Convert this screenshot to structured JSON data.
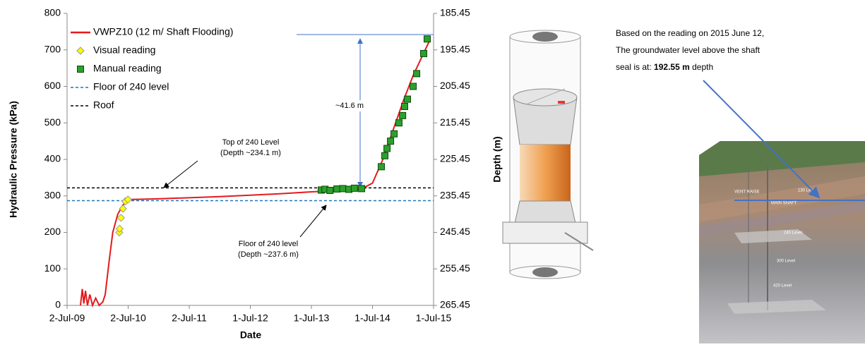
{
  "chart_data": {
    "type": "line",
    "x_label": "Date",
    "y_label": "Hydraulic Pressure (kPa)",
    "y2_label": "Depth (m)",
    "xlim": [
      "2009-07-02",
      "2015-07-01"
    ],
    "xticks": [
      {
        "value": "2009-07-02",
        "label": "2-Jul-09"
      },
      {
        "value": "2010-07-02",
        "label": "2-Jul-10"
      },
      {
        "value": "2011-07-02",
        "label": "2-Jul-11"
      },
      {
        "value": "2012-07-01",
        "label": "1-Jul-12"
      },
      {
        "value": "2013-07-01",
        "label": "1-Jul-13"
      },
      {
        "value": "2014-07-01",
        "label": "1-Jul-14"
      },
      {
        "value": "2015-07-01",
        "label": "1-Jul-15"
      }
    ],
    "ylim": [
      0,
      800
    ],
    "yticks": [
      0,
      100,
      200,
      300,
      400,
      500,
      600,
      700,
      800
    ],
    "y2lim": [
      265.45,
      185.45
    ],
    "y2ticks": [
      265.45,
      255.45,
      245.45,
      235.45,
      225.45,
      215.45,
      205.45,
      195.45,
      185.45
    ],
    "grid": false,
    "legend": "top-left",
    "series": [
      {
        "name": "VWPZ10 (12 m/ Shaft Flooding)",
        "color": "#e41a1c",
        "kind": "line",
        "x": [
          "2009-09-20",
          "2009-10-01",
          "2009-10-10",
          "2009-10-20",
          "2009-11-01",
          "2009-11-15",
          "2009-12-01",
          "2009-12-20",
          "2010-01-10",
          "2010-02-01",
          "2010-02-15",
          "2010-03-10",
          "2010-04-01",
          "2010-05-01",
          "2010-06-01",
          "2010-07-10",
          "2011-01-01",
          "2011-07-01",
          "2012-01-01",
          "2012-07-01",
          "2013-01-01",
          "2013-07-01",
          "2014-01-01",
          "2014-05-01",
          "2014-07-01",
          "2014-09-01",
          "2014-11-01",
          "2015-01-01",
          "2015-03-01",
          "2015-06-12"
        ],
        "values": [
          0,
          45,
          5,
          40,
          0,
          30,
          0,
          20,
          0,
          10,
          30,
          120,
          200,
          250,
          275,
          290,
          292,
          295,
          298,
          302,
          306,
          311,
          315,
          320,
          335,
          400,
          480,
          560,
          630,
          730
        ]
      },
      {
        "name": "Visual reading",
        "color": "#ffff00",
        "kind": "diamond",
        "x": [
          "2010-05-10",
          "2010-05-12",
          "2010-05-20",
          "2010-06-01",
          "2010-06-15",
          "2010-07-01"
        ],
        "values": [
          200,
          210,
          240,
          265,
          285,
          290
        ]
      },
      {
        "name": "Manual reading",
        "color": "#2ca02c",
        "kind": "square",
        "x": [
          "2013-08-29",
          "2013-09-20",
          "2013-10-20",
          "2013-12-01",
          "2014-01-05",
          "2014-02-10",
          "2014-03-15",
          "2014-04-27",
          "2014-08-23",
          "2014-09-13",
          "2014-09-26",
          "2014-10-17",
          "2014-11-07",
          "2014-12-06",
          "2014-12-28",
          "2015-01-09",
          "2015-01-26",
          "2015-03-01",
          "2015-03-22",
          "2015-05-03",
          "2015-05-24"
        ],
        "values": [
          316,
          318,
          315,
          319,
          320,
          318,
          321,
          320,
          380,
          410,
          430,
          450,
          470,
          500,
          520,
          545,
          565,
          600,
          635,
          690,
          730
        ]
      }
    ],
    "reference_lines": [
      {
        "name": "Floor of 240 level",
        "color": "#1f77b4",
        "value": 287
      },
      {
        "name": "Roof",
        "color": "#000000",
        "value": 322
      }
    ],
    "annotations": [
      "Top of 240 Level",
      "(Depth ~234.1 m)",
      "Floor of 240 level",
      "(Depth ~237.6 m)",
      "~41.6 m"
    ]
  },
  "note": {
    "lines": [
      "Based on the reading on 2015 June 12,",
      "The groundwater level above the shaft",
      "seal is at:"
    ],
    "value": "192.55 m",
    "suffix": "depth"
  },
  "diagram_labels": [
    "VENT RAISE",
    "MAIN SHAFT",
    "130 Level",
    "240 Level",
    "300 Level",
    "420 Level"
  ]
}
